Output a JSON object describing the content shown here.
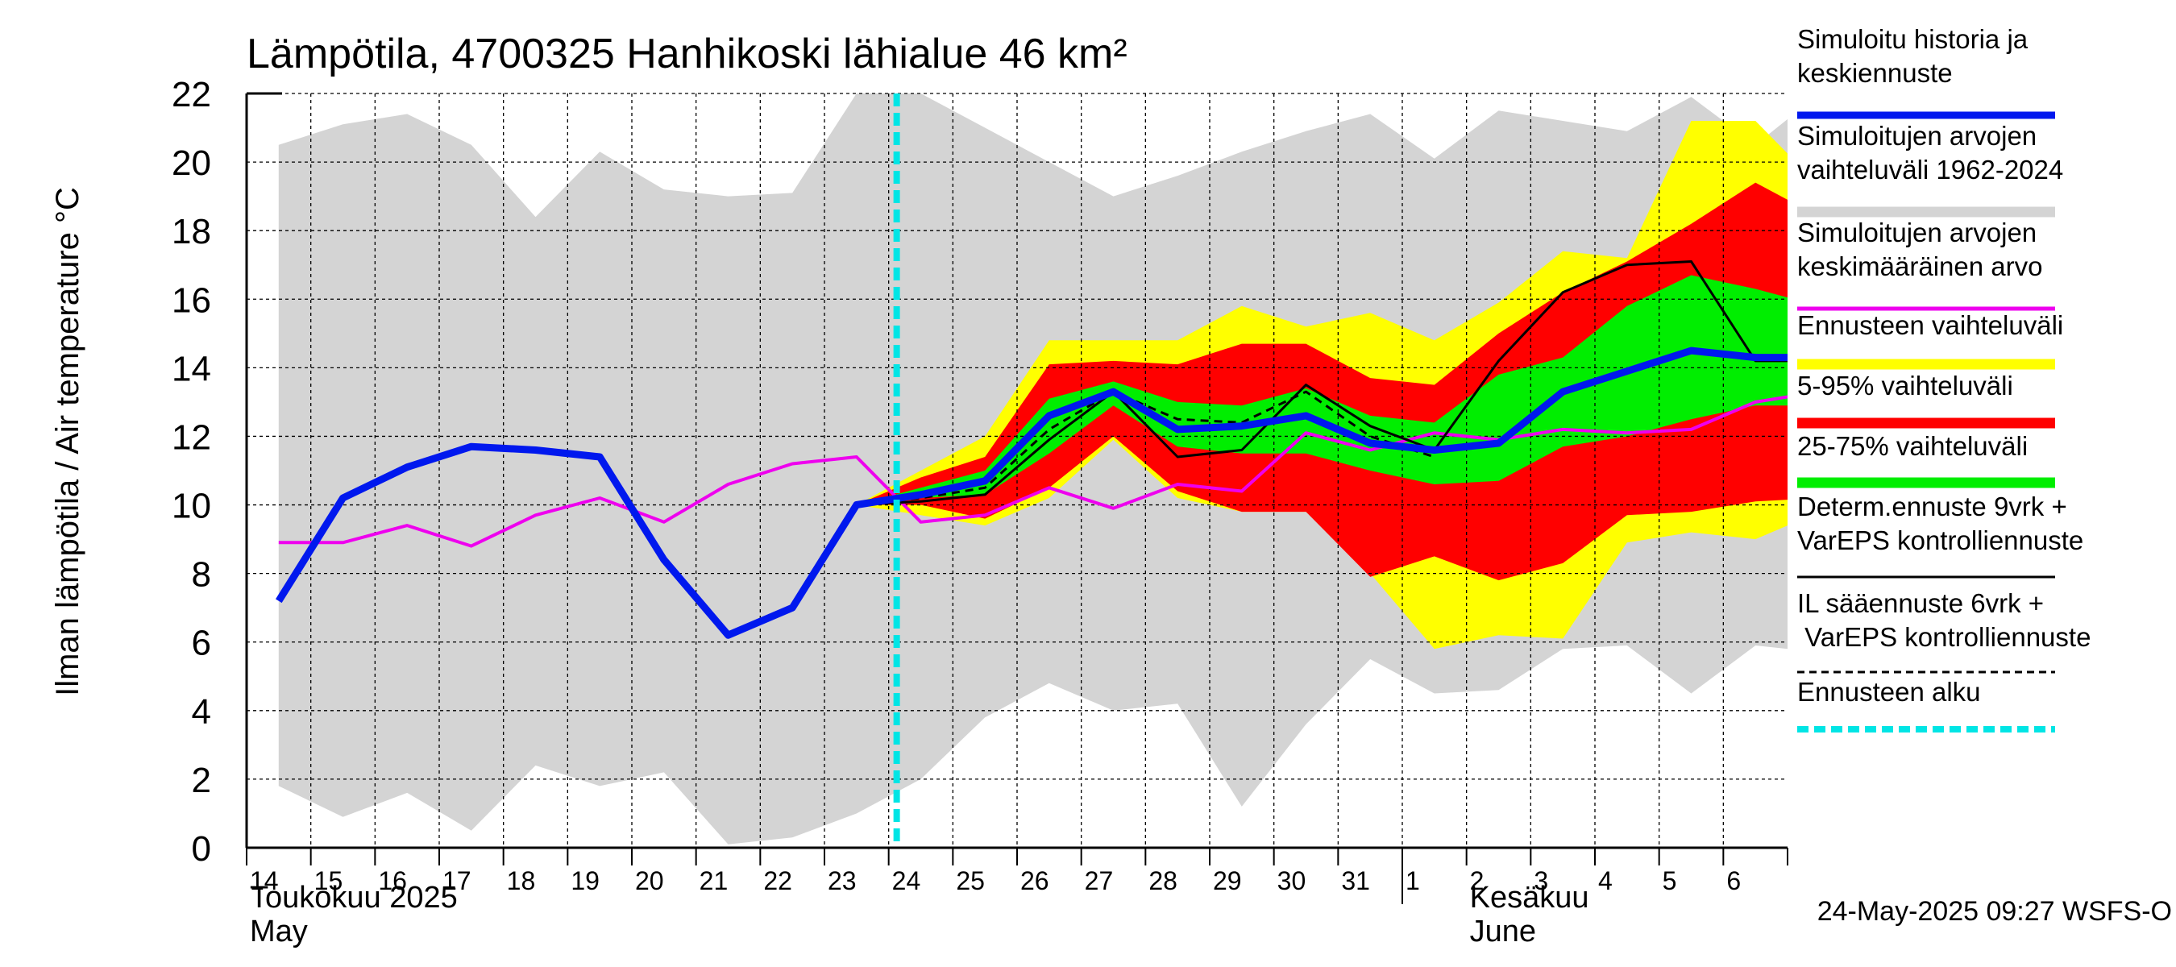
{
  "chart_data": {
    "type": "area",
    "title": "Lämpötila, 4700325 Hanhikoski lähialue 46 km²",
    "ylabel": "Ilman lämpötila / Air temperature    °C",
    "ylim": [
      0,
      22
    ],
    "yticks": [
      0,
      2,
      4,
      6,
      8,
      10,
      12,
      14,
      16,
      18,
      20,
      22
    ],
    "xlim": [
      "2025-05-14",
      "2025-06-07"
    ],
    "grid": true,
    "legend_placement": "right",
    "x_day_labels": [
      "14",
      "15",
      "16",
      "17",
      "18",
      "19",
      "20",
      "21",
      "22",
      "23",
      "24",
      "25",
      "26",
      "27",
      "28",
      "29",
      "30",
      "31",
      "1",
      "2",
      "3",
      "4",
      "5",
      "6"
    ],
    "month_labels": [
      {
        "fi": "Toukokuu  2025",
        "en": "May"
      },
      {
        "fi": "Kesäkuu",
        "en": "June"
      }
    ],
    "forecast_start": "2025-05-24T03:00",
    "timestamp": "24-May-2025 09:27 WSFS-O",
    "colors": {
      "history_band": "#d4d4d4",
      "forecast_range": "#ffff00",
      "p5_95": "#ff0000",
      "p25_75": "#00ee00",
      "simulated": "#0018ee",
      "sim_mean": "#ee00ee",
      "deterministic": "#000000",
      "forecast_start": "#00e5e5"
    },
    "series": {
      "history_band": {
        "x": [
          "2025-05-14",
          "2025-05-15",
          "2025-05-16",
          "2025-05-17",
          "2025-05-18",
          "2025-05-19",
          "2025-05-20",
          "2025-05-21",
          "2025-05-22",
          "2025-05-23",
          "2025-05-24",
          "2025-05-25",
          "2025-05-26",
          "2025-05-27",
          "2025-05-28",
          "2025-05-29",
          "2025-05-30",
          "2025-05-31",
          "2025-06-01",
          "2025-06-02",
          "2025-06-03",
          "2025-06-04",
          "2025-06-05",
          "2025-06-06",
          "2025-06-07"
        ],
        "upper": [
          20.5,
          21.1,
          21.4,
          20.5,
          18.4,
          20.3,
          19.2,
          19.0,
          19.1,
          22.0,
          22.0,
          21.0,
          20.0,
          19.0,
          19.6,
          20.3,
          20.9,
          21.4,
          20.1,
          21.5,
          21.2,
          20.9,
          21.9,
          20.5,
          22.0
        ],
        "lower": [
          1.8,
          0.9,
          1.6,
          0.5,
          2.4,
          1.8,
          2.2,
          0.1,
          0.3,
          1.0,
          2.0,
          3.8,
          4.8,
          4.0,
          4.2,
          1.2,
          3.6,
          5.5,
          4.5,
          4.6,
          5.8,
          5.9,
          4.5,
          5.9,
          5.7
        ]
      },
      "forecast_range": {
        "x": [
          "2025-05-23",
          "2025-05-24",
          "2025-05-25",
          "2025-05-26",
          "2025-05-27",
          "2025-05-28",
          "2025-05-29",
          "2025-05-30",
          "2025-05-31",
          "2025-06-01",
          "2025-06-02",
          "2025-06-03",
          "2025-06-04",
          "2025-06-05",
          "2025-06-06",
          "2025-06-07"
        ],
        "upper": [
          10.0,
          11.0,
          12.0,
          14.8,
          14.8,
          14.8,
          15.8,
          15.2,
          15.6,
          14.8,
          15.9,
          17.4,
          17.2,
          21.2,
          21.2,
          19.3
        ],
        "lower": [
          10.0,
          9.7,
          9.4,
          10.2,
          11.9,
          10.2,
          9.8,
          9.8,
          8.0,
          5.8,
          6.2,
          6.1,
          8.9,
          9.2,
          9.0,
          9.8
        ]
      },
      "p5_95": {
        "x": [
          "2025-05-23",
          "2025-05-24",
          "2025-05-25",
          "2025-05-26",
          "2025-05-27",
          "2025-05-28",
          "2025-05-29",
          "2025-05-30",
          "2025-05-31",
          "2025-06-01",
          "2025-06-02",
          "2025-06-03",
          "2025-06-04",
          "2025-06-05",
          "2025-06-06",
          "2025-06-07"
        ],
        "upper": [
          10.0,
          10.8,
          11.4,
          14.1,
          14.2,
          14.1,
          14.7,
          14.7,
          13.7,
          13.5,
          15.0,
          16.2,
          17.1,
          18.2,
          19.4,
          18.4
        ],
        "lower": [
          10.0,
          10.0,
          9.6,
          10.5,
          12.0,
          10.4,
          9.8,
          9.8,
          7.9,
          8.5,
          7.8,
          8.3,
          9.7,
          9.8,
          10.1,
          10.2
        ]
      },
      "p25_75": {
        "x": [
          "2025-05-23",
          "2025-05-24",
          "2025-05-25",
          "2025-05-26",
          "2025-05-27",
          "2025-05-28",
          "2025-05-29",
          "2025-05-30",
          "2025-05-31",
          "2025-06-01",
          "2025-06-02",
          "2025-06-03",
          "2025-06-04",
          "2025-06-05",
          "2025-06-06",
          "2025-06-07"
        ],
        "upper": [
          10.0,
          10.5,
          11.0,
          13.1,
          13.6,
          13.0,
          12.9,
          13.4,
          12.6,
          12.4,
          13.8,
          14.3,
          15.8,
          16.7,
          16.3,
          15.8
        ],
        "lower": [
          10.0,
          10.2,
          10.3,
          11.5,
          12.9,
          11.7,
          11.5,
          11.5,
          11.0,
          10.6,
          10.7,
          11.7,
          12.0,
          12.5,
          12.9,
          12.9
        ]
      },
      "simulated": {
        "x": [
          "2025-05-14",
          "2025-05-15",
          "2025-05-16",
          "2025-05-17",
          "2025-05-18",
          "2025-05-19",
          "2025-05-20",
          "2025-05-21",
          "2025-05-22",
          "2025-05-23",
          "2025-05-24",
          "2025-05-25",
          "2025-05-26",
          "2025-05-27",
          "2025-05-28",
          "2025-05-29",
          "2025-05-30",
          "2025-05-31",
          "2025-06-01",
          "2025-06-02",
          "2025-06-03",
          "2025-06-04",
          "2025-06-05",
          "2025-06-06",
          "2025-06-07"
        ],
        "values": [
          7.2,
          10.2,
          11.1,
          11.7,
          11.6,
          11.4,
          8.4,
          6.2,
          7.0,
          10.0,
          10.3,
          10.7,
          12.6,
          13.3,
          12.2,
          12.3,
          12.6,
          11.8,
          11.6,
          11.8,
          13.3,
          13.9,
          14.5,
          14.3,
          14.3
        ]
      },
      "sim_mean": {
        "x": [
          "2025-05-14",
          "2025-05-15",
          "2025-05-16",
          "2025-05-17",
          "2025-05-18",
          "2025-05-19",
          "2025-05-20",
          "2025-05-21",
          "2025-05-22",
          "2025-05-23",
          "2025-05-24",
          "2025-05-25",
          "2025-05-26",
          "2025-05-27",
          "2025-05-28",
          "2025-05-29",
          "2025-05-30",
          "2025-05-31",
          "2025-06-01",
          "2025-06-02",
          "2025-06-03",
          "2025-06-04",
          "2025-06-05",
          "2025-06-06",
          "2025-06-07"
        ],
        "values": [
          8.9,
          8.9,
          9.4,
          8.8,
          9.7,
          10.2,
          9.5,
          10.6,
          11.2,
          11.4,
          9.5,
          9.7,
          10.5,
          9.9,
          10.6,
          10.4,
          12.1,
          11.6,
          12.1,
          11.9,
          12.2,
          12.1,
          12.2,
          13.0,
          13.3
        ]
      },
      "deterministic": {
        "x": [
          "2025-05-23",
          "2025-05-24",
          "2025-05-25",
          "2025-05-26",
          "2025-05-27",
          "2025-05-28",
          "2025-05-29",
          "2025-05-30",
          "2025-05-31",
          "2025-06-01",
          "2025-06-02",
          "2025-06-03",
          "2025-06-04",
          "2025-06-05",
          "2025-06-06",
          "2025-06-07"
        ],
        "values": [
          10.0,
          10.1,
          10.3,
          11.9,
          13.3,
          11.4,
          11.6,
          13.5,
          12.3,
          11.6,
          14.2,
          16.2,
          17.0,
          17.1,
          14.2,
          14.2
        ]
      },
      "il_forecast": {
        "x": [
          "2025-05-23",
          "2025-05-24",
          "2025-05-25",
          "2025-05-26",
          "2025-05-27",
          "2025-05-28",
          "2025-05-29",
          "2025-05-30",
          "2025-05-31",
          "2025-06-01"
        ],
        "values": [
          10.0,
          10.2,
          10.5,
          12.2,
          13.3,
          12.5,
          12.4,
          13.3,
          12.0,
          11.4
        ]
      }
    },
    "legend": [
      {
        "label": "Simuloitu historia ja keskiennuste",
        "style": "simulated"
      },
      {
        "label": "Simuloitujen arvojen vaihteluväli 1962-2024",
        "style": "history_band"
      },
      {
        "label": "Simuloitujen arvojen keskimääräinen arvo",
        "style": "sim_mean"
      },
      {
        "label": "Ennusteen vaihteluväli",
        "style": "forecast_range"
      },
      {
        "label": "5-95% vaihteluväli",
        "style": "p5_95"
      },
      {
        "label": "25-75% vaihteluväli",
        "style": "p25_75"
      },
      {
        "label": "Determ.ennuste 9vrk + VarEPS kontrolliennuste",
        "style": "deterministic"
      },
      {
        "label": "IL sääennuste 6vrk  + VarEPS kontrolliennuste",
        "style": "il_forecast"
      },
      {
        "label": "Ennusteen alku",
        "style": "forecast_start"
      }
    ]
  }
}
